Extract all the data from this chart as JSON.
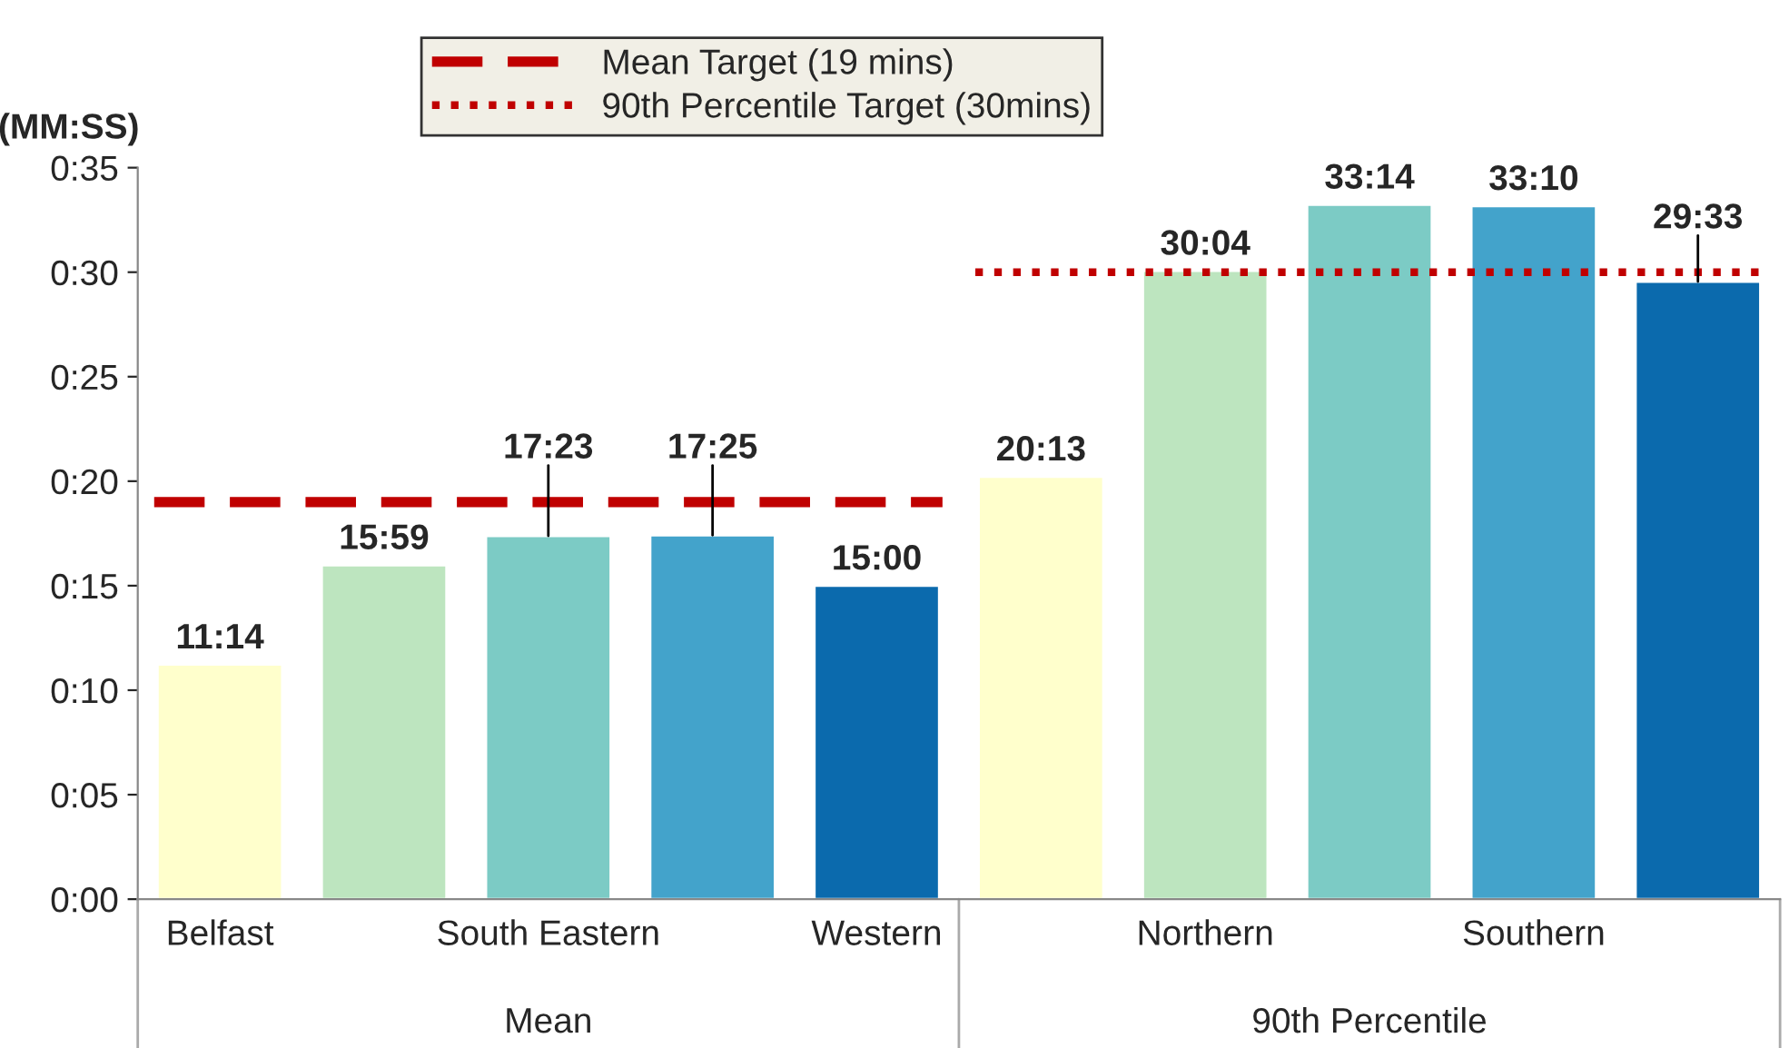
{
  "chart_data": {
    "type": "bar",
    "ylabel": "(MM:SS)",
    "categories": [
      "Belfast",
      null,
      "South Eastern",
      null,
      "Western",
      null,
      "Northern",
      null,
      "Southern",
      null
    ],
    "values": [
      11.233,
      15.983,
      17.383,
      17.417,
      15.0,
      20.217,
      30.067,
      33.233,
      33.167,
      29.55
    ],
    "value_labels": [
      "11:14",
      "15:59",
      "17:23",
      "17:25",
      "15:00",
      "20:13",
      "30:04",
      "33:14",
      "33:10",
      "29:33"
    ],
    "colors": [
      "#ffffcc",
      "#bde5bf",
      "#7ccbc5",
      "#43a3cb",
      "#0b6aad",
      "#ffffcc",
      "#bde5bf",
      "#7ccbc5",
      "#43a3cb",
      "#0b6aad"
    ],
    "ylim": [
      0,
      35
    ],
    "yticks": [
      {
        "value": 0,
        "label": "0:00"
      },
      {
        "value": 5,
        "label": "0:05"
      },
      {
        "value": 10,
        "label": "0:10"
      },
      {
        "value": 15,
        "label": "0:15"
      },
      {
        "value": 20,
        "label": "0:20"
      },
      {
        "value": 25,
        "label": "0:25"
      },
      {
        "value": 30,
        "label": "0:30"
      },
      {
        "value": 35,
        "label": "0:35"
      }
    ],
    "ref_lines": [
      {
        "axis": "y",
        "value": 19,
        "label": "Mean Target (19 mins)",
        "color": "#c00000",
        "line_style": "dashed"
      },
      {
        "axis": "y",
        "value": 30,
        "label": "90th Percentile Target (30mins)",
        "color": "#c00000",
        "line_style": "dotted"
      }
    ],
    "annotations": [
      "Mean",
      "90th Percentile"
    ],
    "grid": false,
    "legend": "top"
  }
}
